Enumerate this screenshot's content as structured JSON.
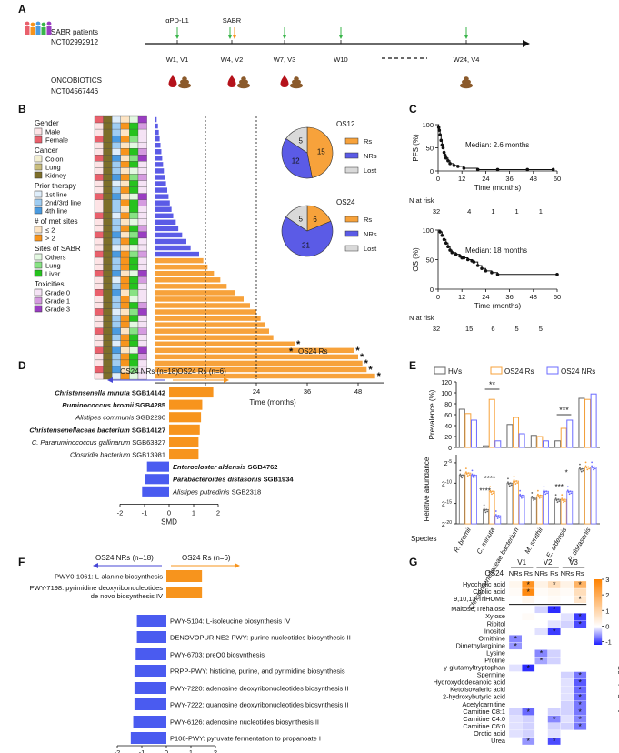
{
  "panels": {
    "a": {
      "letter": "A",
      "patients_line1": "SABR patients",
      "patients_line2": "NCT02992912",
      "oncobiotics_line1": "ONCOBIOTICS",
      "oncobiotics_line2": "NCT04567446",
      "arrow_pdl1": "αPD-L1",
      "arrow_sabr": "SABR",
      "visits": [
        "W1, V1",
        "W4, V2",
        "W7, V3",
        "W10",
        "W24, V4"
      ],
      "colors": {
        "pdl1": "#39b54a",
        "sabr": "#f7941d",
        "blood": "#b5121b",
        "stool": "#8b5a2b"
      }
    },
    "b": {
      "letter": "B",
      "legend": [
        {
          "title": "Gender",
          "items": [
            {
              "label": "Male",
              "color": "#fde3e5"
            },
            {
              "label": "Female",
              "color": "#e9606c"
            }
          ]
        },
        {
          "title": "Cancer",
          "items": [
            {
              "label": "Colon",
              "color": "#f3efd2"
            },
            {
              "label": "Lung",
              "color": "#c9bd7d"
            },
            {
              "label": "Kidney",
              "color": "#7d6e2a"
            }
          ]
        },
        {
          "title": "Prior therapy",
          "items": [
            {
              "label": "1st line",
              "color": "#dfeefb"
            },
            {
              "label": "2nd/3rd line",
              "color": "#9fcdf2"
            },
            {
              "label": "4th line",
              "color": "#4a9be0"
            }
          ]
        },
        {
          "title": "# of met sites",
          "items": [
            {
              "label": "≤ 2",
              "color": "#fde4c4"
            },
            {
              "label": "> 2",
              "color": "#f7941d"
            }
          ]
        },
        {
          "title": "Sites of SABR",
          "items": [
            {
              "label": "Others",
              "color": "#e3f8e1"
            },
            {
              "label": "Lung",
              "color": "#88e284"
            },
            {
              "label": "Liver",
              "color": "#26c21e"
            }
          ]
        },
        {
          "title": "Toxicities",
          "items": [
            {
              "label": "Grade 0",
              "color": "#f5e3f5"
            },
            {
              "label": "Grade 1",
              "color": "#d59be0"
            },
            {
              "label": "Grade 3",
              "color": "#9a3dc2"
            }
          ]
        }
      ],
      "survival_bars_months": [
        0.5,
        0.8,
        1.0,
        1.2,
        1.4,
        1.6,
        1.8,
        2.0,
        2.2,
        2.4,
        2.7,
        3.0,
        3.3,
        3.6,
        4.0,
        4.4,
        5.0,
        5.6,
        6.5,
        7.5,
        8.5,
        10.5,
        11.5,
        12.5,
        14,
        15.5,
        17,
        19,
        21,
        22.5,
        24,
        25,
        26,
        27,
        28,
        33,
        47,
        48,
        49,
        50,
        52
      ],
      "responder_start_index": 22,
      "asterisk_bars": [
        35,
        36,
        37,
        38,
        39,
        40
      ],
      "xticks": [
        12,
        24,
        36,
        48
      ],
      "xmax": 54,
      "xlabel": "Time (months)",
      "refline_months": [
        12,
        24
      ],
      "os24_label": "OS24 Rs",
      "colors": {
        "nr": "#5b5be6",
        "r": "#f7a23b"
      }
    },
    "pies": [
      {
        "title": "OS12",
        "values": [
          15,
          12,
          5
        ]
      },
      {
        "title": "OS24",
        "values": [
          6,
          21,
          5
        ]
      }
    ],
    "pie_legend": [
      {
        "label": "Rs",
        "color": "#f7a23b"
      },
      {
        "label": "NRs",
        "color": "#5b5be6"
      },
      {
        "label": "Lost",
        "color": "#d9d9d9"
      }
    ],
    "c": {
      "letter": "C",
      "pfs": {
        "ylabel": "PFS (%)",
        "median": "Median: 2.6 months",
        "risk": [
          "32",
          "4",
          "1",
          "1",
          "1"
        ],
        "km": [
          [
            0,
            100
          ],
          [
            0.3,
            94
          ],
          [
            0.6,
            88
          ],
          [
            1,
            78
          ],
          [
            1.5,
            66
          ],
          [
            2,
            56
          ],
          [
            2.5,
            50
          ],
          [
            3,
            40
          ],
          [
            3.5,
            34
          ],
          [
            4,
            28
          ],
          [
            5,
            22
          ],
          [
            6,
            16
          ],
          [
            8,
            12
          ],
          [
            10,
            10
          ],
          [
            13,
            6
          ],
          [
            20,
            3
          ],
          [
            30,
            3
          ],
          [
            45,
            3
          ],
          [
            58,
            3
          ]
        ]
      },
      "os": {
        "ylabel": "OS (%)",
        "median": "Median: 18 months",
        "risk": [
          "32",
          "15",
          "6",
          "5",
          "5"
        ],
        "km": [
          [
            0,
            100
          ],
          [
            1,
            97
          ],
          [
            2,
            91
          ],
          [
            3,
            84
          ],
          [
            4,
            78
          ],
          [
            5,
            72
          ],
          [
            6,
            66
          ],
          [
            7,
            62
          ],
          [
            9,
            59
          ],
          [
            11,
            56
          ],
          [
            12,
            53
          ],
          [
            13,
            53
          ],
          [
            15,
            50
          ],
          [
            17,
            48
          ],
          [
            18,
            46
          ],
          [
            20,
            40
          ],
          [
            22,
            35
          ],
          [
            24,
            31
          ],
          [
            27,
            28
          ],
          [
            30,
            25
          ],
          [
            60,
            25
          ]
        ]
      },
      "xticks": [
        "0",
        "12",
        "24",
        "36",
        "48",
        "60"
      ],
      "yticks": [
        "0",
        "50",
        "100"
      ],
      "xlabel": "Time (months)",
      "risk_label": "N at risk"
    },
    "d": {
      "letter": "D",
      "left_header": "OS24 NRs (n=18)",
      "right_header": "OS24 Rs (n=6)",
      "xlabel": "SMD",
      "xticks": [
        "-2",
        "-1",
        "0",
        "1",
        "2"
      ],
      "bars": [
        {
          "italic": "Christensenella minuta",
          "plain": " SGB14142",
          "value": 1.8,
          "bold": true,
          "color": "#f7941d"
        },
        {
          "italic": "Ruminococcus bromii",
          "plain": " SGB4285",
          "value": 1.35,
          "bold": true,
          "color": "#f7941d"
        },
        {
          "italic": "Alistipes communis",
          "plain": " SGB2290",
          "value": 1.3,
          "bold": false,
          "color": "#111"
        },
        {
          "italic": "Christensenellaceae bacterium",
          "plain": " SGB14127",
          "value": 1.25,
          "bold": true,
          "color": "#f7941d"
        },
        {
          "italic": "C. Pararuminococcus gallinarum",
          "plain": " SGB63327",
          "value": 1.2,
          "bold": false,
          "color": "#111"
        },
        {
          "italic": "Clostridia bacterium",
          "plain": " SGB13981",
          "value": 1.2,
          "bold": false,
          "color": "#111"
        },
        {
          "italic": "Enterocloster aldensis",
          "plain": " SGB4762",
          "value": -0.9,
          "bold": true,
          "color": "#4747d6"
        },
        {
          "italic": "Parabacteroides distasonis",
          "plain": " SGB1934",
          "value": -1.0,
          "bold": true,
          "color": "#4747d6"
        },
        {
          "italic": "Alistipes putredinis",
          "plain": " SGB2318",
          "value": -1.1,
          "bold": false,
          "color": "#111"
        }
      ]
    },
    "e": {
      "letter": "E",
      "legend": [
        "HVs",
        "OS24 Rs",
        "OS24 NRs"
      ],
      "ylabel_top": "Prevalence (%)",
      "ylabel_bottom": "Relative abundance",
      "yticks_top": [
        "0",
        "20",
        "40",
        "60",
        "80",
        "100",
        "120"
      ],
      "yticks_bottom": [
        "2-20",
        "2-15",
        "2-10",
        "2-5"
      ],
      "species": [
        "R. bromii",
        "C. minuta",
        "Christensenellaceae bacterium",
        "M. smithii",
        "E. aldensis",
        "P. distasonis"
      ],
      "species_label": "Species",
      "prevalence": [
        [
          70,
          62,
          50
        ],
        [
          3,
          88,
          12
        ],
        [
          42,
          55,
          25
        ],
        [
          22,
          20,
          12
        ],
        [
          12,
          35,
          50
        ],
        [
          90,
          88,
          98
        ]
      ],
      "abundance": [
        [
          -8,
          -7.5,
          -8
        ],
        [
          -16.5,
          -12,
          -18
        ],
        [
          -10,
          -9.5,
          -13
        ],
        [
          -13.5,
          -13,
          -12
        ],
        [
          -14,
          -14,
          -12
        ],
        [
          -6.5,
          -6,
          -6
        ]
      ],
      "sig_top": [
        "**",
        "***"
      ],
      "sig_bottom": [
        "****",
        "****",
        "***",
        "*"
      ],
      "colors": [
        "#666666",
        "#f7a23b",
        "#6b6bff"
      ]
    },
    "f": {
      "letter": "F",
      "left_header": "OS24 NRs (n=18)",
      "right_header": "OS24 Rs (n=6)",
      "xlabel": "SMD",
      "xticks": [
        "-2",
        "-1",
        "0",
        "1",
        "2"
      ],
      "bars": [
        {
          "label": "PWY0-1061: L-alanine biosynthesis",
          "value": 1.45
        },
        {
          "label": "PWY-7198: pyrimidine deoxyribonucleotides de novo biosynthesis IV",
          "value": 1.45
        },
        {
          "label": "PWY-5104: L-isoleucine biosynthesis IV",
          "value": -1.2
        },
        {
          "label": "DENOVOPURINE2-PWY: purine nucleotides biosynthesis II",
          "value": -1.2
        },
        {
          "label": "PWY-6703: preQ0 biosynthesis",
          "value": -1.25
        },
        {
          "label": "PRPP-PWY: histidine, purine, and pyrimidine biosynthesis",
          "value": -1.3
        },
        {
          "label": "PWY-7220: adenosine deoxyribonucleotides biosynthesis II",
          "value": -1.3
        },
        {
          "label": "PWY-7222: guanosine deoxyribonucleotides biosynthesis II",
          "value": -1.3
        },
        {
          "label": "PWY-6126: adenosine nucleotides biosynthesis II",
          "value": -1.35
        },
        {
          "label": "P108-PWY: pyruvate fermentation to propanoate I",
          "value": -1.45
        }
      ]
    },
    "g": {
      "letter": "G",
      "row_header": "OS24",
      "visits": [
        "V1",
        "V2",
        "V3"
      ],
      "cols": [
        "NRs",
        "Rs",
        "NRs",
        "Rs",
        "NRs",
        "Rs"
      ],
      "colorbar_title": "AreaCorrLog2Cen",
      "colorbar_ticks": [
        "3",
        "2",
        "1",
        "0",
        "-1"
      ],
      "rows": [
        {
          "label": "Hyocholic acid",
          "v": [
            0.2,
            2.6,
            0.3,
            0.8,
            0.3,
            1.8
          ],
          "s": [
            0,
            1,
            0,
            1,
            0,
            1
          ]
        },
        {
          "label": "Cholic acid",
          "v": [
            0.1,
            2.8,
            0.1,
            0.2,
            0.1,
            0.8
          ],
          "s": [
            0,
            1,
            0,
            0,
            0,
            0
          ]
        },
        {
          "label": "9,10,13-TriHOME",
          "v": [
            0,
            0.2,
            0,
            0.1,
            0,
            0.6
          ],
          "s": [
            0,
            0,
            0,
            0,
            0,
            1
          ]
        },
        {
          "label": "Maltose;Trehalose",
          "v": [
            0,
            0,
            -0.3,
            -1.4,
            0,
            0
          ],
          "s": [
            0,
            0,
            0,
            1,
            0,
            0
          ]
        },
        {
          "label": "Xylose",
          "v": [
            0,
            0.1,
            0,
            0,
            -0.2,
            -1.3
          ],
          "s": [
            0,
            0,
            0,
            0,
            0,
            1
          ]
        },
        {
          "label": "Ribitol",
          "v": [
            0,
            0,
            0,
            -0.2,
            -0.3,
            -1.2
          ],
          "s": [
            0,
            0,
            0,
            0,
            0,
            1
          ]
        },
        {
          "label": "Inositol",
          "v": [
            0,
            0,
            -0.2,
            -1.3,
            0,
            0
          ],
          "s": [
            0,
            0,
            0,
            1,
            0,
            0
          ]
        },
        {
          "label": "Ornithine",
          "v": [
            -0.8,
            0,
            0,
            0,
            0,
            0
          ],
          "s": [
            1,
            0,
            0,
            0,
            0,
            0
          ]
        },
        {
          "label": "Dimethylarginine",
          "v": [
            -0.7,
            0,
            0,
            0,
            0,
            0
          ],
          "s": [
            1,
            0,
            0,
            0,
            0,
            0
          ]
        },
        {
          "label": "Lysine",
          "v": [
            0,
            0,
            -0.8,
            -0.3,
            0,
            0
          ],
          "s": [
            0,
            0,
            1,
            0,
            0,
            0
          ]
        },
        {
          "label": "Proline",
          "v": [
            0,
            0,
            -0.6,
            -0.3,
            0,
            0
          ],
          "s": [
            0,
            0,
            1,
            0,
            0,
            0
          ]
        },
        {
          "label": "γ-glutamyltryptophan",
          "v": [
            -0.2,
            -1.4,
            0,
            0,
            0,
            0
          ],
          "s": [
            0,
            1,
            0,
            0,
            0,
            0
          ]
        },
        {
          "label": "Spermine",
          "v": [
            0,
            0,
            0,
            0,
            -0.3,
            -0.9
          ],
          "s": [
            0,
            0,
            0,
            0,
            0,
            1
          ]
        },
        {
          "label": "Hydroxydodecanoic acid",
          "v": [
            0,
            0,
            0,
            0,
            -0.2,
            -1.1
          ],
          "s": [
            0,
            0,
            0,
            0,
            0,
            1
          ]
        },
        {
          "label": "Ketoisovaleric acid",
          "v": [
            0,
            0,
            0,
            0,
            -0.2,
            -1.0
          ],
          "s": [
            0,
            0,
            0,
            0,
            0,
            1
          ]
        },
        {
          "label": "2-hydroxybutyric acid",
          "v": [
            0,
            0,
            0,
            0,
            -0.2,
            -1.0
          ],
          "s": [
            0,
            0,
            0,
            0,
            0,
            1
          ]
        },
        {
          "label": "Acetylcarnitine",
          "v": [
            0,
            0,
            0,
            0,
            -0.3,
            -0.9
          ],
          "s": [
            0,
            0,
            0,
            0,
            0,
            1
          ]
        },
        {
          "label": "Carnitine C8:1",
          "v": [
            -0.3,
            -1.0,
            0,
            -0.3,
            -0.3,
            -0.9
          ],
          "s": [
            0,
            1,
            0,
            0,
            0,
            1
          ]
        },
        {
          "label": "Carnitine C4:0",
          "v": [
            -0.2,
            -0.3,
            0,
            -0.8,
            -0.2,
            -0.8
          ],
          "s": [
            0,
            0,
            0,
            1,
            0,
            1
          ]
        },
        {
          "label": "Carnitine C6:0",
          "v": [
            -0.2,
            -0.3,
            0,
            -0.3,
            -0.3,
            -0.9
          ],
          "s": [
            0,
            0,
            0,
            0,
            0,
            1
          ]
        },
        {
          "label": "Orotic acid",
          "v": [
            -0.2,
            -0.3,
            0,
            -0.2,
            0,
            0
          ],
          "s": [
            0,
            0,
            0,
            0,
            0,
            0
          ]
        },
        {
          "label": "Urea",
          "v": [
            0,
            -0.7,
            0,
            -1.2,
            0,
            0
          ],
          "s": [
            0,
            1,
            0,
            1,
            0,
            0
          ]
        }
      ]
    }
  }
}
